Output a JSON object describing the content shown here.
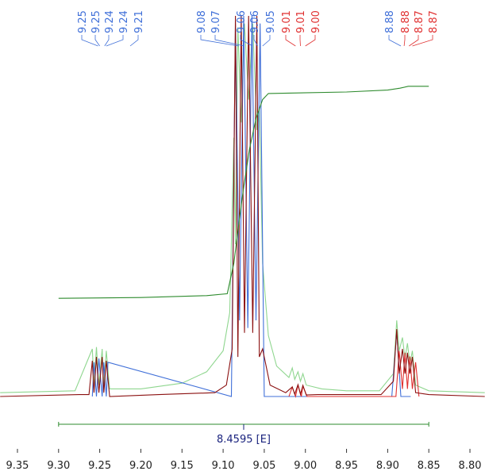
{
  "chart_data": {
    "type": "line",
    "xlim": [
      9.3712,
      8.7817
    ],
    "ylim": [
      0,
      100
    ],
    "xticks": [
      9.35,
      {
        "value": 9.3,
        "label": "9.30"
      },
      9.25,
      {
        "value": 9.2,
        "label": "9.20"
      },
      9.15,
      {
        "value": 9.1,
        "label": "9.10"
      },
      9.05,
      {
        "value": 9.0,
        "label": "9.00"
      },
      8.95,
      {
        "value": 8.9,
        "label": "8.90"
      },
      8.85,
      {
        "value": 8.8,
        "label": "8.80"
      }
    ],
    "series": [
      {
        "color": "#8fd68f",
        "x": [
          9.371,
          9.28,
          9.259,
          9.257,
          9.254,
          9.251,
          9.247,
          9.245,
          9.242,
          9.238,
          9.2,
          9.15,
          9.12,
          9.1,
          9.092,
          9.087,
          9.085,
          9.082,
          9.078,
          9.074,
          9.069,
          9.064,
          9.059,
          9.056,
          9.052,
          9.045,
          9.035,
          9.02,
          9.016,
          9.013,
          9.009,
          9.006,
          9.003,
          8.999,
          8.98,
          8.95,
          8.91,
          8.893,
          8.889,
          8.886,
          8.882,
          8.879,
          8.876,
          8.873,
          8.87,
          8.866,
          8.85,
          8.782
        ],
        "values": [
          1,
          1.5,
          12.5,
          3,
          13,
          3,
          12.5,
          3,
          12,
          2,
          2,
          3.5,
          6.5,
          12,
          22,
          68,
          40,
          97,
          72,
          98,
          78,
          98,
          70,
          76,
          35,
          16,
          8,
          5,
          7.5,
          4.5,
          6.5,
          4,
          6,
          3,
          2,
          1.5,
          1.5,
          6,
          20,
          12,
          15.5,
          10,
          14,
          8.5,
          12,
          3,
          1.5,
          1
        ]
      },
      {
        "color": "#3f6fd8",
        "x": [
          9.259,
          9.257,
          9.254,
          9.251,
          9.247,
          9.245,
          9.242,
          9.24,
          9.09,
          9.085,
          9.08,
          9.075,
          9.07,
          9.065,
          9.06,
          9.055,
          9.05,
          9.046,
          8.895,
          8.889,
          8.884,
          8.878,
          8.872
        ],
        "values": [
          0,
          9,
          0,
          10,
          0,
          9,
          0,
          9,
          0,
          98,
          20,
          100,
          18,
          100,
          20,
          98,
          0,
          0,
          0,
          17,
          0,
          0,
          0
        ]
      },
      {
        "color": "#e03030",
        "x": [
          9.02,
          9.016,
          9.012,
          9.009,
          9.005,
          9.003,
          8.998,
          8.89,
          8.886,
          8.882,
          8.879,
          8.876,
          8.873,
          8.87,
          8.866,
          8.862
        ],
        "values": [
          0,
          2.5,
          0,
          3,
          0,
          2.8,
          0,
          0,
          12,
          2,
          11.5,
          2,
          10.5,
          2,
          9,
          0
        ]
      },
      {
        "color": "#8b1010",
        "x": [
          9.371,
          9.275,
          9.263,
          9.259,
          9.257,
          9.254,
          9.251,
          9.247,
          9.245,
          9.242,
          9.238,
          9.178,
          9.11,
          9.096,
          9.089,
          9.085,
          9.082,
          9.078,
          9.074,
          9.069,
          9.064,
          9.059,
          9.056,
          9.052,
          9.043,
          9.024,
          9.016,
          9.013,
          9.009,
          9.006,
          9.003,
          8.999,
          8.985,
          8.908,
          8.893,
          8.889,
          8.886,
          8.882,
          8.879,
          8.876,
          8.873,
          8.87,
          8.866,
          8.85,
          8.782
        ],
        "values": [
          0,
          0.5,
          0.5,
          9.4,
          1,
          10.4,
          1,
          10.4,
          1,
          9.4,
          0,
          0.5,
          1,
          3,
          12.5,
          100,
          10.4,
          100,
          16.7,
          100,
          16.7,
          100,
          10.4,
          12.5,
          3,
          1,
          2.5,
          0.6,
          3.1,
          0.6,
          2.9,
          0.4,
          0.5,
          0.5,
          4,
          17.7,
          6,
          12.5,
          6,
          11.5,
          6,
          10.4,
          1,
          0.5,
          0
        ]
      },
      {
        "color": "#2e8b2e",
        "x": [
          9.3,
          9.2,
          9.12,
          9.095,
          9.087,
          9.08,
          9.075,
          9.068,
          9.06,
          9.052,
          9.045,
          8.95,
          8.9,
          8.885,
          8.875,
          8.85
        ],
        "values": [
          25.8,
          26,
          26.5,
          27,
          35,
          47,
          55,
          65,
          73,
          78,
          79.6,
          80,
          80.5,
          81,
          81.5,
          81.5
        ]
      }
    ],
    "peak_labels": [
      {
        "value": 9.252,
        "label": "9.25",
        "color": "#3f6fd8"
      },
      {
        "value": 9.25,
        "label": "9.25",
        "color": "#3f6fd8"
      },
      {
        "value": 9.244,
        "label": "9.24",
        "color": "#3f6fd8"
      },
      {
        "value": 9.242,
        "label": "9.24",
        "color": "#3f6fd8"
      },
      {
        "value": 9.213,
        "label": "9.21",
        "color": "#3f6fd8"
      },
      {
        "value": 9.081,
        "label": "9.08",
        "color": "#3f6fd8"
      },
      {
        "value": 9.074,
        "label": "9.07",
        "color": "#3f6fd8"
      },
      {
        "value": 9.064,
        "label": "9.06",
        "color": "#3f6fd8"
      },
      {
        "value": 9.058,
        "label": "9.06",
        "color": "#3f6fd8"
      },
      {
        "value": 9.052,
        "label": "9.05",
        "color": "#3f6fd8"
      },
      {
        "value": 9.012,
        "label": "9.01",
        "color": "#e03030"
      },
      {
        "value": 9.006,
        "label": "9.01",
        "color": "#e03030"
      },
      {
        "value": 9.0,
        "label": "9.00",
        "color": "#e03030"
      },
      {
        "value": 8.884,
        "label": "8.88",
        "color": "#3f6fd8"
      },
      {
        "value": 8.88,
        "label": "8.88",
        "color": "#e03030"
      },
      {
        "value": 8.874,
        "label": "8.87",
        "color": "#e03030"
      },
      {
        "value": 8.87,
        "label": "8.87",
        "color": "#e03030"
      }
    ],
    "integral": {
      "label": "8.4595 [E]",
      "from": 9.3,
      "to": 8.85,
      "color": "#2e8b2e"
    }
  }
}
